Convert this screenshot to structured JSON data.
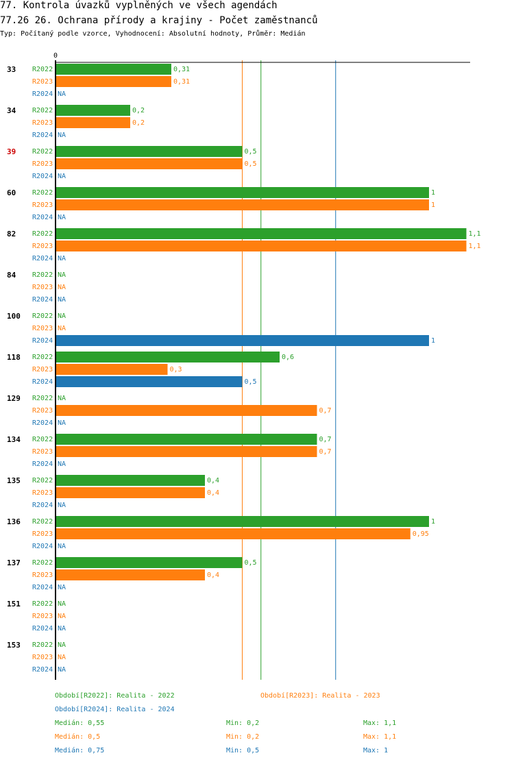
{
  "header": {
    "title": "77. Kontrola úvazků vyplněných ve všech agendách",
    "subtitle": "77.26 26. Ochrana přírody a krajiny - Počet zaměstnanců",
    "description": "Typ: Počítaný podle vzorce, Vyhodnocení: Absolutní hodnoty, Průměr: Medián"
  },
  "chart_data": {
    "type": "bar",
    "orientation": "horizontal",
    "axis_zero_label": "0",
    "xlim": [
      0,
      1.1
    ],
    "na_label": "NA",
    "colors": {
      "R2022": "#2ca02c",
      "R2023": "#ff7f0e",
      "R2024": "#1f77b4",
      "highlight": "#cc0000"
    },
    "series_names": [
      "R2022",
      "R2023",
      "R2024"
    ],
    "categories": [
      {
        "id": "33",
        "highlight": false,
        "values": [
          0.31,
          0.31,
          null
        ],
        "labels": [
          "0,31",
          "0,31",
          "NA"
        ]
      },
      {
        "id": "34",
        "highlight": false,
        "values": [
          0.2,
          0.2,
          null
        ],
        "labels": [
          "0,2",
          "0,2",
          "NA"
        ]
      },
      {
        "id": "39",
        "highlight": true,
        "values": [
          0.5,
          0.5,
          null
        ],
        "labels": [
          "0,5",
          "0,5",
          "NA"
        ]
      },
      {
        "id": "60",
        "highlight": false,
        "values": [
          1,
          1,
          null
        ],
        "labels": [
          "1",
          "1",
          "NA"
        ]
      },
      {
        "id": "82",
        "highlight": false,
        "values": [
          1.1,
          1.1,
          null
        ],
        "labels": [
          "1,1",
          "1,1",
          "NA"
        ]
      },
      {
        "id": "84",
        "highlight": false,
        "values": [
          null,
          null,
          null
        ],
        "labels": [
          "NA",
          "NA",
          "NA"
        ]
      },
      {
        "id": "100",
        "highlight": false,
        "values": [
          null,
          null,
          1
        ],
        "labels": [
          "NA",
          "NA",
          "1"
        ]
      },
      {
        "id": "118",
        "highlight": false,
        "values": [
          0.6,
          0.3,
          0.5
        ],
        "labels": [
          "0,6",
          "0,3",
          "0,5"
        ]
      },
      {
        "id": "129",
        "highlight": false,
        "values": [
          null,
          0.7,
          null
        ],
        "labels": [
          "NA",
          "0,7",
          "NA"
        ]
      },
      {
        "id": "134",
        "highlight": false,
        "values": [
          0.7,
          0.7,
          null
        ],
        "labels": [
          "0,7",
          "0,7",
          "NA"
        ]
      },
      {
        "id": "135",
        "highlight": false,
        "values": [
          0.4,
          0.4,
          null
        ],
        "labels": [
          "0,4",
          "0,4",
          "NA"
        ]
      },
      {
        "id": "136",
        "highlight": false,
        "values": [
          1,
          0.95,
          null
        ],
        "labels": [
          "1",
          "0,95",
          "NA"
        ]
      },
      {
        "id": "137",
        "highlight": false,
        "values": [
          0.5,
          0.4,
          null
        ],
        "labels": [
          "0,5",
          "0,4",
          "NA"
        ]
      },
      {
        "id": "151",
        "highlight": false,
        "values": [
          null,
          null,
          null
        ],
        "labels": [
          "NA",
          "NA",
          "NA"
        ]
      },
      {
        "id": "153",
        "highlight": false,
        "values": [
          null,
          null,
          null
        ],
        "labels": [
          "NA",
          "NA",
          "NA"
        ]
      }
    ],
    "reference_lines": [
      {
        "series": "R2022",
        "value": 0.55
      },
      {
        "series": "R2023",
        "value": 0.5
      },
      {
        "series": "R2024",
        "value": 0.75
      }
    ],
    "legend": [
      {
        "series": "R2022",
        "text": "Období[R2022]: Realita - 2022"
      },
      {
        "series": "R2023",
        "text": "Období[R2023]: Realita - 2023"
      },
      {
        "series": "R2024",
        "text": "Období[R2024]: Realita - 2024"
      }
    ],
    "stats": [
      {
        "series": "R2022",
        "median": "Medián: 0,55",
        "min": "Min: 0,2",
        "max": "Max: 1,1"
      },
      {
        "series": "R2023",
        "median": "Medián: 0,5",
        "min": "Min: 0,2",
        "max": "Max: 1,1"
      },
      {
        "series": "R2024",
        "median": "Medián: 0,75",
        "min": "Min: 0,5",
        "max": "Max: 1"
      }
    ]
  }
}
